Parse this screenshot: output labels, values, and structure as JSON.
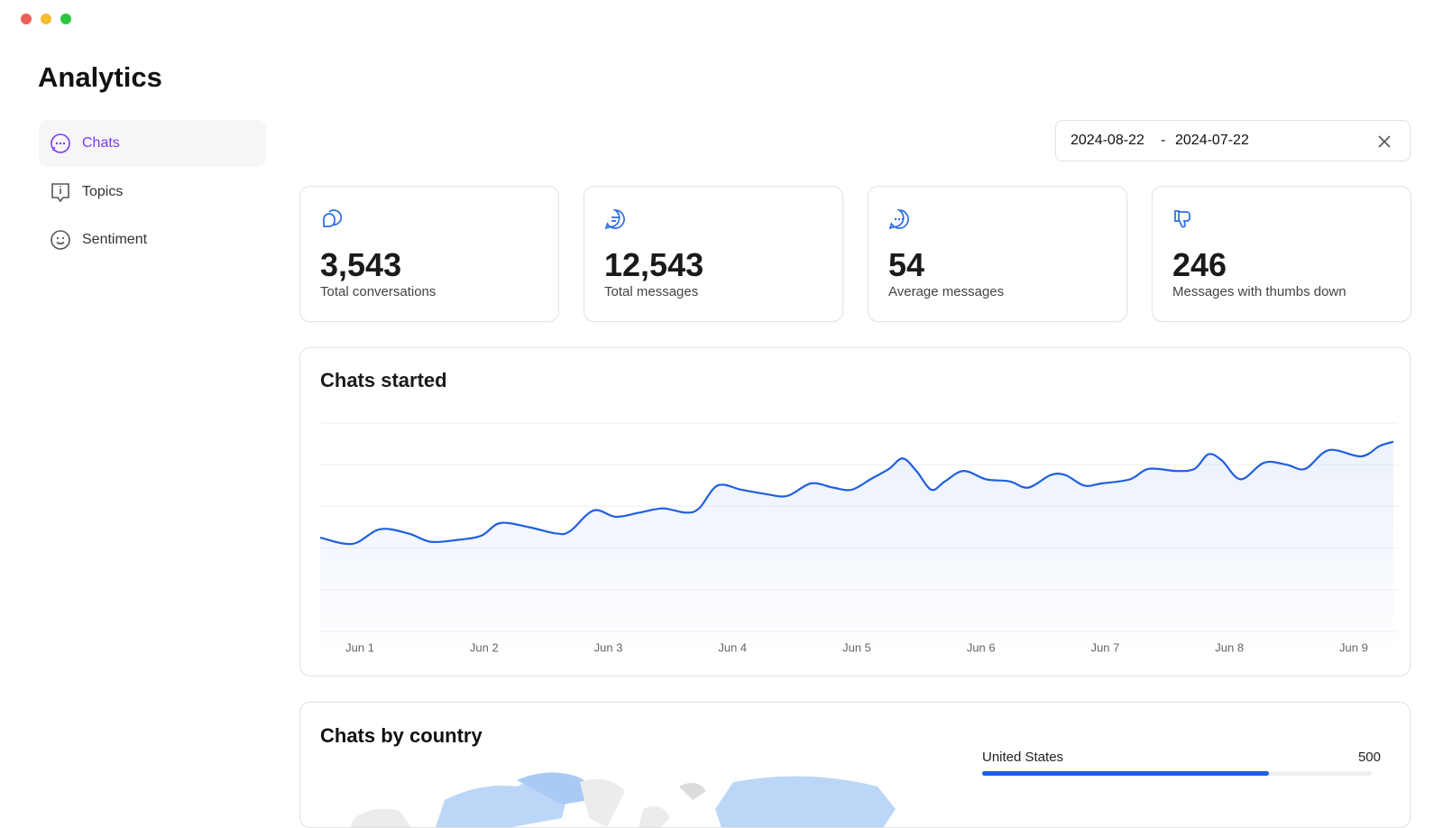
{
  "title": "Analytics",
  "nav": [
    {
      "label": "Chats",
      "active": true
    },
    {
      "label": "Topics",
      "active": false
    },
    {
      "label": "Sentiment",
      "active": false
    }
  ],
  "date_range": {
    "start": "2024-08-22",
    "end": "2024-07-22"
  },
  "stats": [
    {
      "value": "3,543",
      "label": "Total conversations"
    },
    {
      "value": "12,543",
      "label": "Total messages"
    },
    {
      "value": "54",
      "label": "Average messages"
    },
    {
      "value": "246",
      "label": "Messages with thumbs down"
    }
  ],
  "chart_data": {
    "type": "line",
    "title": "Chats started",
    "x": [
      0.68,
      0.94,
      1.16,
      1.39,
      1.57,
      1.8,
      1.98,
      2.13,
      2.36,
      2.58,
      2.69,
      2.88,
      3.06,
      3.25,
      3.44,
      3.62,
      3.73,
      3.88,
      4.07,
      4.26,
      4.44,
      4.63,
      4.81,
      4.96,
      5.11,
      5.26,
      5.37,
      5.48,
      5.6,
      5.71,
      5.86,
      6.04,
      6.23,
      6.38,
      6.56,
      6.68,
      6.83,
      6.97,
      7.2,
      7.35,
      7.57,
      7.72,
      7.83,
      7.94,
      8.09,
      8.28,
      8.46,
      8.61,
      8.8,
      9.06,
      9.21,
      9.32
    ],
    "series": [
      {
        "color": "#1f5fe0",
        "values": [
          45,
          42,
          49,
          47,
          43,
          44,
          46,
          52,
          50,
          47,
          48,
          58,
          55,
          57,
          59,
          57,
          59,
          70,
          68,
          66,
          65,
          71,
          69,
          68,
          73,
          78,
          83,
          77,
          68,
          72,
          77,
          73,
          72,
          69,
          75,
          75,
          70,
          71,
          73,
          78,
          77,
          78,
          85,
          82,
          73,
          81,
          80,
          78,
          87,
          84,
          89,
          91
        ]
      }
    ],
    "xlim": [
      0.68,
      9.32
    ],
    "xticks": [
      {
        "value": 1,
        "label": "Jun 1"
      },
      {
        "value": 2,
        "label": "Jun 2"
      },
      {
        "value": 3,
        "label": "Jun 3"
      },
      {
        "value": 4,
        "label": "Jun 4"
      },
      {
        "value": 5,
        "label": "Jun 5"
      },
      {
        "value": 6,
        "label": "Jun 6"
      },
      {
        "value": 7,
        "label": "Jun 7"
      },
      {
        "value": 8,
        "label": "Jun 8"
      },
      {
        "value": 9,
        "label": "Jun 9"
      }
    ],
    "ylim": [
      0,
      100
    ],
    "yticks": [
      0,
      20,
      40,
      60,
      80,
      100
    ],
    "grid": true
  },
  "country": {
    "title": "Chats by country",
    "xlim": [
      0,
      680
    ],
    "color": "#1f5fe0",
    "rows": [
      {
        "name": "United States",
        "value": 500
      }
    ]
  }
}
